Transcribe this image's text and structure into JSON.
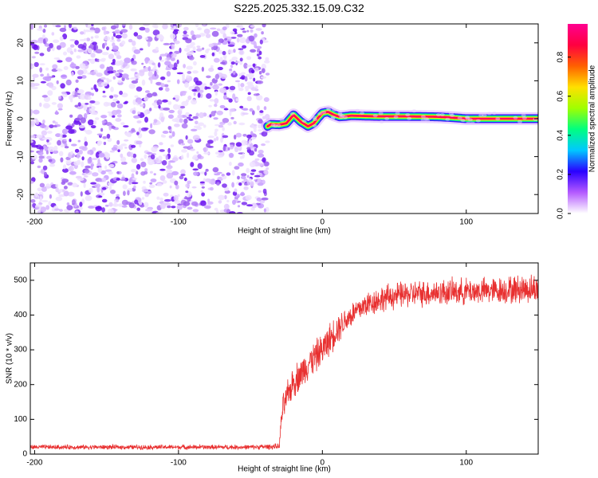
{
  "title": "S225.2025.332.15.09.C32",
  "chart_data": [
    {
      "type": "heatmap",
      "name": "spectrogram",
      "xlabel": "Height of straight line (km)",
      "ylabel": "Frequency (Hz)",
      "xlim": [
        -203,
        150
      ],
      "ylim": [
        -25,
        25
      ],
      "xticks": [
        -200,
        -100,
        0,
        100
      ],
      "xtick_labels": [
        "-200",
        "-100",
        "0",
        "100"
      ],
      "yticks": [
        -20,
        -10,
        0,
        10,
        20
      ],
      "ytick_labels": [
        "-20",
        "-10",
        "0",
        "10",
        "20"
      ],
      "noise_region": {
        "x_from": -203,
        "x_to": -38,
        "description_value": "scattered low-amplitude noise"
      },
      "signal_ridge": {
        "x": [
          -38,
          -36,
          -30,
          -25,
          -20,
          -15,
          -10,
          -6,
          -3,
          0,
          4,
          8,
          12,
          16,
          20,
          30,
          40,
          60,
          80,
          90,
          100,
          120,
          150
        ],
        "frequency": [
          -2.0,
          -1.5,
          -1.6,
          -1.2,
          1.0,
          -0.8,
          -2.0,
          -1.2,
          0.2,
          1.5,
          1.8,
          1.0,
          0.5,
          0.6,
          0.8,
          0.7,
          0.6,
          0.6,
          0.5,
          0.3,
          0.0,
          0.0,
          0.0
        ],
        "amplitude": [
          0.5,
          0.9,
          0.85,
          0.8,
          0.7,
          0.75,
          0.8,
          0.7,
          0.75,
          0.7,
          0.8,
          0.85,
          0.9,
          0.9,
          0.95,
          0.95,
          0.95,
          0.95,
          0.95,
          0.8,
          0.9,
          0.95,
          0.9
        ]
      },
      "colorbar": {
        "label": "Normalized spectral amplitude",
        "ticks": [
          0.0,
          0.2,
          0.4,
          0.6,
          0.8
        ],
        "tick_labels": [
          "0.0",
          "0.2",
          "0.4",
          "0.6",
          "0.8"
        ],
        "range": [
          0,
          0.97
        ],
        "colors": [
          "#ffffff",
          "#b45aff",
          "#2a00ff",
          "#00c8ff",
          "#00ff80",
          "#a0ff00",
          "#ffe000",
          "#ff6000",
          "#ff0040",
          "#ff0090"
        ]
      }
    },
    {
      "type": "line",
      "name": "snr",
      "xlabel": "Height of straight line (km)",
      "ylabel": "SNR (10 * v/v)",
      "xlim": [
        -203,
        150
      ],
      "ylim": [
        0,
        550
      ],
      "xticks": [
        -200,
        -100,
        0,
        100
      ],
      "xtick_labels": [
        "-200",
        "-100",
        "0",
        "100"
      ],
      "yticks": [
        0,
        100,
        200,
        300,
        400,
        500
      ],
      "ytick_labels": [
        "0",
        "100",
        "200",
        "300",
        "400",
        "500"
      ],
      "color": "#e83030",
      "series": [
        {
          "name": "SNR",
          "x": [
            -203,
            -150,
            -100,
            -50,
            -30,
            -28,
            -25,
            -22,
            -20,
            -15,
            -10,
            -5,
            0,
            5,
            10,
            15,
            20,
            30,
            40,
            50,
            60,
            80,
            100,
            120,
            140,
            150
          ],
          "mean": [
            20,
            20,
            20,
            20,
            22,
            120,
            160,
            190,
            210,
            230,
            260,
            280,
            300,
            330,
            360,
            380,
            400,
            430,
            445,
            455,
            460,
            465,
            468,
            470,
            475,
            475
          ],
          "noise": [
            8,
            8,
            8,
            8,
            10,
            50,
            50,
            50,
            55,
            55,
            55,
            55,
            55,
            55,
            55,
            45,
            45,
            45,
            45,
            45,
            45,
            45,
            45,
            45,
            50,
            50
          ]
        }
      ]
    }
  ]
}
